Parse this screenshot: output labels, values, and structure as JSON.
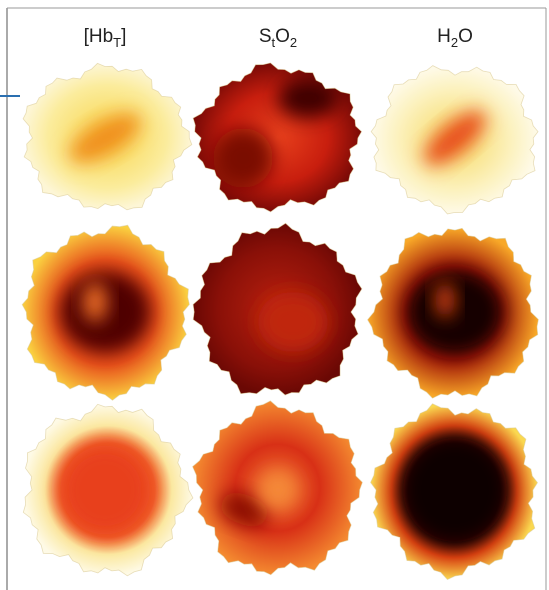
{
  "columns": [
    {
      "label": {
        "main": "[Hb",
        "sub": "T",
        "tail": "]"
      }
    },
    {
      "label": {
        "main": "S",
        "sub": "t",
        "mid": "O",
        "sub2": "2"
      }
    },
    {
      "label": {
        "main": "H",
        "sub": "2",
        "tail": "O"
      }
    }
  ]
}
